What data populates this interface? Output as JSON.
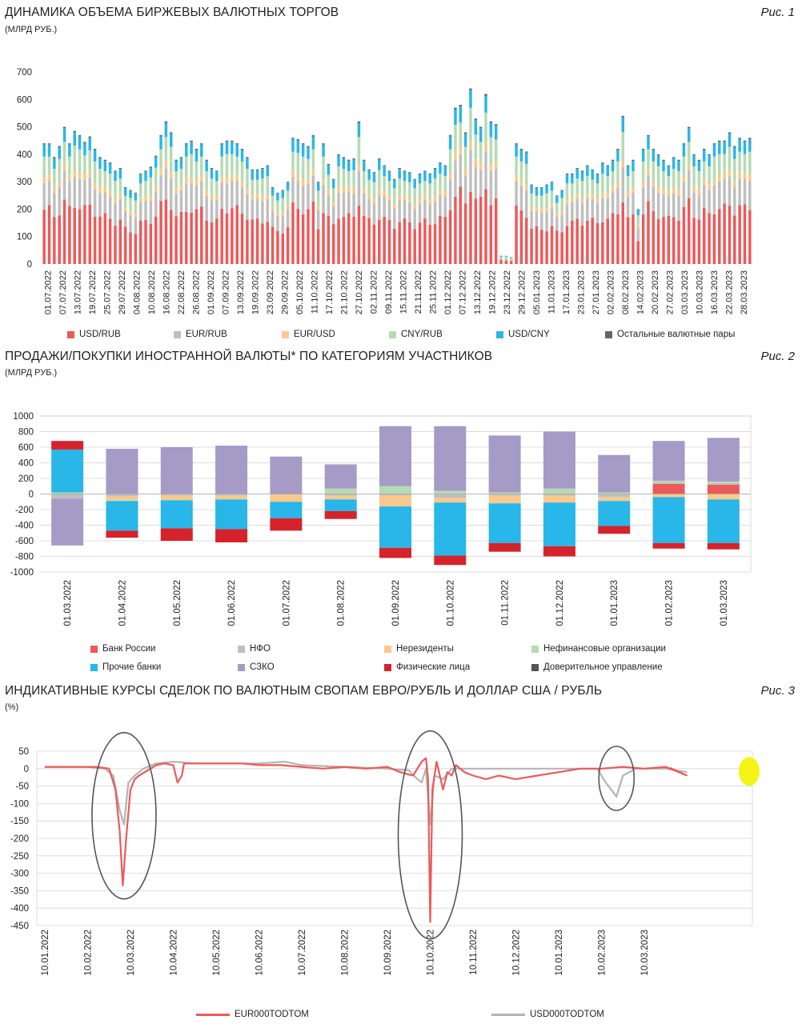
{
  "fig1": {
    "title": "ДИНАМИКА ОБЪЕМА БИРЖЕВЫХ ВАЛЮТНЫХ ТОРГОВ",
    "unit": "(МЛРД РУБ.)",
    "fig": "Рис. 1",
    "legend": [
      {
        "label": "USD/RUB",
        "color": "#ec5a5a"
      },
      {
        "label": "EUR/RUB",
        "color": "#bfbfbf"
      },
      {
        "label": "EUR/USD",
        "color": "#fac98c"
      },
      {
        "label": "CNY/RUB",
        "color": "#b6dbb2"
      },
      {
        "label": "USD/CNY",
        "color": "#29b6e8"
      },
      {
        "label": "Остальные валютные пары",
        "color": "#666666"
      }
    ]
  },
  "fig2": {
    "title": "ПРОДАЖИ/ПОКУПКИ ИНОСТРАННОЙ ВАЛЮТЫ* ПО КАТЕГОРИЯМ УЧАСТНИКОВ",
    "unit": "(МЛРД РУБ.)",
    "fig": "Рис. 2",
    "legend": [
      {
        "label": "Банк России",
        "color": "#ec5a5a"
      },
      {
        "label": "НФО",
        "color": "#bfbfbf"
      },
      {
        "label": "Нерезиденты",
        "color": "#fac98c"
      },
      {
        "label": "Нефинансовые организации",
        "color": "#b6dbb2"
      },
      {
        "label": "Прочие банки",
        "color": "#29b6e8"
      },
      {
        "label": "СЗКО",
        "color": "#a59bc6"
      },
      {
        "label": "Физические лица",
        "color": "#d6222b"
      },
      {
        "label": "Доверительное управление",
        "color": "#555555"
      }
    ]
  },
  "fig3": {
    "title": "ИНДИКАТИВНЫЕ КУРСЫ СДЕЛОК ПО ВАЛЮТНЫМ СВОПАМ ЕВРО/РУБЛЬ И ДОЛЛАР США / РУБЛЬ",
    "unit": "(%)",
    "fig": "Рис. 3",
    "legend": [
      {
        "label": "EUR000TODTOM",
        "color": "#ec5a5a"
      },
      {
        "label": "USD000TODTOM",
        "color": "#b4b4b4"
      }
    ]
  },
  "chart_data": [
    {
      "type": "bar",
      "stacked": true,
      "title": "ДИНАМИКА ОБЪЕМА БИРЖЕВЫХ ВАЛЮТНЫХ ТОРГОВ",
      "ylabel": "млрд руб.",
      "ylim": [
        0,
        700
      ],
      "yticks": [
        0,
        100,
        200,
        300,
        400,
        500,
        600,
        700
      ],
      "xticklabels": [
        "01.07.2022",
        "07.07.2022",
        "13.07.2022",
        "19.07.2022",
        "25.07.2022",
        "29.07.2022",
        "04.08.2022",
        "10.08.2022",
        "16.08.2022",
        "22.08.2022",
        "26.08.2022",
        "01.09.2022",
        "07.09.2022",
        "13.09.2022",
        "19.09.2022",
        "23.09.2022",
        "29.09.2022",
        "05.10.2022",
        "11.10.2022",
        "17.10.2022",
        "21.10.2022",
        "27.10.2022",
        "02.11.2022",
        "09.11.2022",
        "15.11.2022",
        "21.11.2022",
        "25.11.2022",
        "01.12.2022",
        "07.12.2022",
        "13.12.2022",
        "19.12.2022",
        "23.12.2022",
        "29.12.2022",
        "05.01.2023",
        "11.01.2023",
        "17.01.2023",
        "23.01.2023",
        "27.01.2023",
        "02.02.2023",
        "08.02.2023",
        "14.02.2023",
        "20.02.2023",
        "27.02.2023",
        "03.03.2023",
        "10.03.2023",
        "16.03.2023",
        "22.03.2023",
        "28.03.2023"
      ],
      "series_names": [
        "USD/RUB",
        "EUR/RUB",
        "EUR/USD",
        "CNY/RUB",
        "USD/CNY",
        "Остальные валютные пары"
      ],
      "totals": [
        440,
        440,
        390,
        430,
        500,
        440,
        485,
        470,
        445,
        465,
        420,
        390,
        380,
        370,
        340,
        350,
        280,
        270,
        260,
        330,
        340,
        355,
        395,
        470,
        520,
        480,
        380,
        390,
        440,
        450,
        420,
        440,
        380,
        350,
        340,
        440,
        450,
        450,
        440,
        420,
        390,
        345,
        345,
        350,
        360,
        280,
        260,
        270,
        300,
        460,
        455,
        440,
        430,
        470,
        300,
        440,
        365,
        310,
        400,
        390,
        380,
        385,
        520,
        380,
        345,
        335,
        385,
        360,
        340,
        310,
        350,
        340,
        335,
        310,
        330,
        340,
        330,
        350,
        370,
        360,
        470,
        570,
        580,
        480,
        640,
        530,
        500,
        620,
        520,
        510,
        30,
        30,
        25,
        440,
        420,
        410,
        290,
        280,
        280,
        290,
        300,
        250,
        270,
        330,
        330,
        350,
        340,
        360,
        345,
        330,
        370,
        360,
        380,
        420,
        540,
        360,
        380,
        200,
        420,
        470,
        420,
        400,
        380,
        360,
        390,
        380,
        440,
        500,
        400,
        380,
        420,
        400,
        440,
        450,
        450,
        480,
        430,
        460,
        450,
        460
      ],
      "series": [
        {
          "name": "USD/RUB",
          "approx_share": 0.45
        },
        {
          "name": "EUR/RUB",
          "approx_share": 0.22
        },
        {
          "name": "EUR/USD",
          "approx_share": 0.05
        },
        {
          "name": "CNY/RUB",
          "approx_share": 0.17
        },
        {
          "name": "USD/CNY",
          "approx_share": 0.1
        },
        {
          "name": "Остальные валютные пары",
          "approx_share": 0.01
        }
      ]
    },
    {
      "type": "bar",
      "stacked": true,
      "title": "ПРОДАЖИ/ПОКУПКИ ИНОСТРАННОЙ ВАЛЮТЫ* ПО КАТЕГОРИЯМ УЧАСТНИКОВ",
      "ylabel": "млрд руб.",
      "ylim": [
        -1000,
        1000
      ],
      "yticks": [
        -1000,
        -800,
        -600,
        -400,
        -200,
        0,
        200,
        400,
        600,
        800,
        1000
      ],
      "categories": [
        "01.03.2022",
        "01.04.2022",
        "01.05.2022",
        "01.06.2022",
        "01.07.2022",
        "01.08.2022",
        "01.09.2022",
        "01.10.2022",
        "01.11.2022",
        "01.12.2022",
        "01.01.2023",
        "01.02.2023",
        "01.03.2023"
      ],
      "series": [
        {
          "name": "Банк России",
          "color": "#ec5a5a",
          "values": [
            0,
            0,
            0,
            0,
            0,
            0,
            0,
            0,
            0,
            0,
            0,
            130,
            120
          ]
        },
        {
          "name": "НФО",
          "color": "#bfbfbf",
          "values": [
            -60,
            -30,
            -20,
            -20,
            0,
            -20,
            -20,
            -50,
            -20,
            -20,
            -40,
            20,
            20
          ]
        },
        {
          "name": "Нерезиденты",
          "color": "#fac98c",
          "values": [
            0,
            -50,
            -60,
            -50,
            -100,
            -50,
            -140,
            -60,
            -100,
            -90,
            -50,
            -40,
            -70
          ]
        },
        {
          "name": "Нефинансовые организации",
          "color": "#b6dbb2",
          "values": [
            20,
            -10,
            0,
            0,
            0,
            70,
            100,
            40,
            20,
            70,
            20,
            20,
            20
          ]
        },
        {
          "name": "Прочие банки",
          "color": "#29b6e8",
          "values": [
            550,
            -380,
            -360,
            -380,
            -210,
            -150,
            -530,
            -680,
            -510,
            -560,
            -320,
            -590,
            -560
          ]
        },
        {
          "name": "СЗКО",
          "color": "#a59bc6",
          "values": [
            -600,
            580,
            600,
            620,
            480,
            310,
            770,
            830,
            730,
            730,
            480,
            510,
            560
          ]
        },
        {
          "name": "Физические лица",
          "color": "#d6222b",
          "values": [
            110,
            -90,
            -160,
            -170,
            -160,
            -100,
            -130,
            -120,
            -110,
            -130,
            -100,
            -70,
            -80
          ]
        },
        {
          "name": "Доверительное управление",
          "color": "#555555",
          "values": [
            0,
            0,
            0,
            0,
            0,
            0,
            0,
            0,
            0,
            0,
            0,
            0,
            0
          ]
        }
      ]
    },
    {
      "type": "line",
      "title": "ИНДИКАТИВНЫЕ КУРСЫ СДЕЛОК ПО ВАЛЮТНЫМ СВОПАМ ЕВРО/РУБЛЬ И ДОЛЛАР США / РУБЛЬ",
      "ylabel": "%",
      "ylim": [
        -450,
        50
      ],
      "yticks": [
        -450,
        -400,
        -350,
        -300,
        -250,
        -200,
        -150,
        -100,
        -50,
        0,
        50
      ],
      "xticklabels": [
        "10.01.2022",
        "10.02.2022",
        "10.03.2022",
        "10.04.2022",
        "10.05.2022",
        "10.06.2022",
        "10.07.2022",
        "10.08.2022",
        "10.09.2022",
        "10.10.2022",
        "10.11.2022",
        "10.12.2022",
        "10.01.2023",
        "10.02.2023",
        "10.03.2023"
      ],
      "x_unit": "months since 10.01.2022",
      "series": [
        {
          "name": "EUR000TODTOM",
          "color": "#ec5a5a",
          "points": [
            [
              0,
              5
            ],
            [
              1.2,
              5
            ],
            [
              1.5,
              0
            ],
            [
              1.65,
              -60
            ],
            [
              1.75,
              -180
            ],
            [
              1.82,
              -335
            ],
            [
              1.9,
              -200
            ],
            [
              2.0,
              -60
            ],
            [
              2.1,
              -30
            ],
            [
              2.2,
              -20
            ],
            [
              2.4,
              -5
            ],
            [
              2.6,
              10
            ],
            [
              2.8,
              15
            ],
            [
              3.0,
              10
            ],
            [
              3.1,
              -40
            ],
            [
              3.2,
              -20
            ],
            [
              3.25,
              15
            ],
            [
              3.6,
              15
            ],
            [
              4.0,
              15
            ],
            [
              4.6,
              15
            ],
            [
              5.0,
              10
            ],
            [
              5.5,
              10
            ],
            [
              6.0,
              5
            ],
            [
              6.5,
              0
            ],
            [
              7.0,
              5
            ],
            [
              7.5,
              0
            ],
            [
              8.0,
              5
            ],
            [
              8.3,
              -10
            ],
            [
              8.6,
              -20
            ],
            [
              8.8,
              20
            ],
            [
              8.9,
              30
            ],
            [
              8.95,
              -30
            ],
            [
              9.0,
              -440
            ],
            [
              9.05,
              -60
            ],
            [
              9.15,
              20
            ],
            [
              9.3,
              -60
            ],
            [
              9.4,
              -10
            ],
            [
              9.5,
              -20
            ],
            [
              9.6,
              10
            ],
            [
              9.8,
              -10
            ],
            [
              10.0,
              -20
            ],
            [
              10.3,
              -30
            ],
            [
              10.6,
              -20
            ],
            [
              11.0,
              -30
            ],
            [
              11.5,
              -20
            ],
            [
              12.0,
              -10
            ],
            [
              12.5,
              0
            ],
            [
              13.0,
              0
            ],
            [
              13.5,
              5
            ],
            [
              14.0,
              0
            ],
            [
              14.5,
              5
            ],
            [
              15.0,
              -20
            ]
          ]
        },
        {
          "name": "USD000TODTOM",
          "color": "#b4b4b4",
          "points": [
            [
              0,
              5
            ],
            [
              1.0,
              5
            ],
            [
              1.4,
              0
            ],
            [
              1.6,
              -20
            ],
            [
              1.75,
              -120
            ],
            [
              1.85,
              -160
            ],
            [
              1.95,
              -40
            ],
            [
              2.1,
              -20
            ],
            [
              2.3,
              0
            ],
            [
              2.6,
              15
            ],
            [
              3.0,
              20
            ],
            [
              3.5,
              15
            ],
            [
              4.0,
              15
            ],
            [
              5.0,
              15
            ],
            [
              5.6,
              20
            ],
            [
              6.0,
              10
            ],
            [
              7.0,
              5
            ],
            [
              8.0,
              0
            ],
            [
              8.5,
              -5
            ],
            [
              8.7,
              -30
            ],
            [
              8.8,
              -40
            ],
            [
              8.9,
              0
            ],
            [
              9.0,
              -160
            ],
            [
              9.1,
              -20
            ],
            [
              9.3,
              -30
            ],
            [
              9.5,
              0
            ],
            [
              10.0,
              0
            ],
            [
              11.0,
              0
            ],
            [
              12.0,
              0
            ],
            [
              12.9,
              0
            ],
            [
              13.1,
              -40
            ],
            [
              13.35,
              -80
            ],
            [
              13.5,
              -20
            ],
            [
              13.8,
              0
            ],
            [
              14.5,
              0
            ],
            [
              15.0,
              -10
            ]
          ]
        }
      ]
    }
  ]
}
